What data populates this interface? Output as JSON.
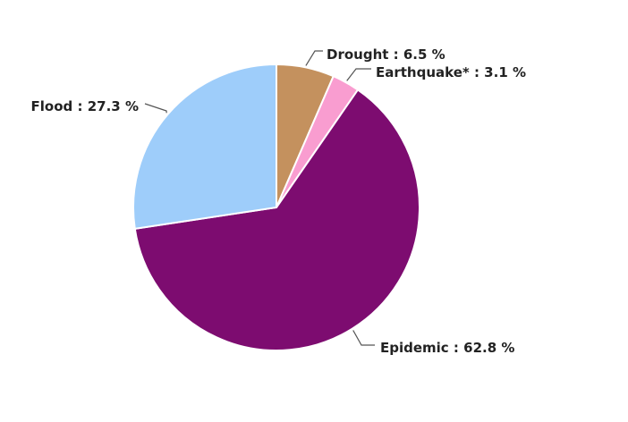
{
  "chart_data": {
    "type": "pie",
    "title": "",
    "slices": [
      {
        "name": "Drought",
        "value": 6.5,
        "label": "Drought : 6.5 %",
        "color": "#c4915e"
      },
      {
        "name": "Earthquake*",
        "value": 3.1,
        "label": "Earthquake* : 3.1 %",
        "color": "#f99dd0"
      },
      {
        "name": "Epidemic",
        "value": 62.8,
        "label": "Epidemic : 62.8 %",
        "color": "#7d0c70"
      },
      {
        "name": "Flood",
        "value": 27.3,
        "label": "Flood : 27.3 %",
        "color": "#9ecdfa"
      }
    ]
  }
}
